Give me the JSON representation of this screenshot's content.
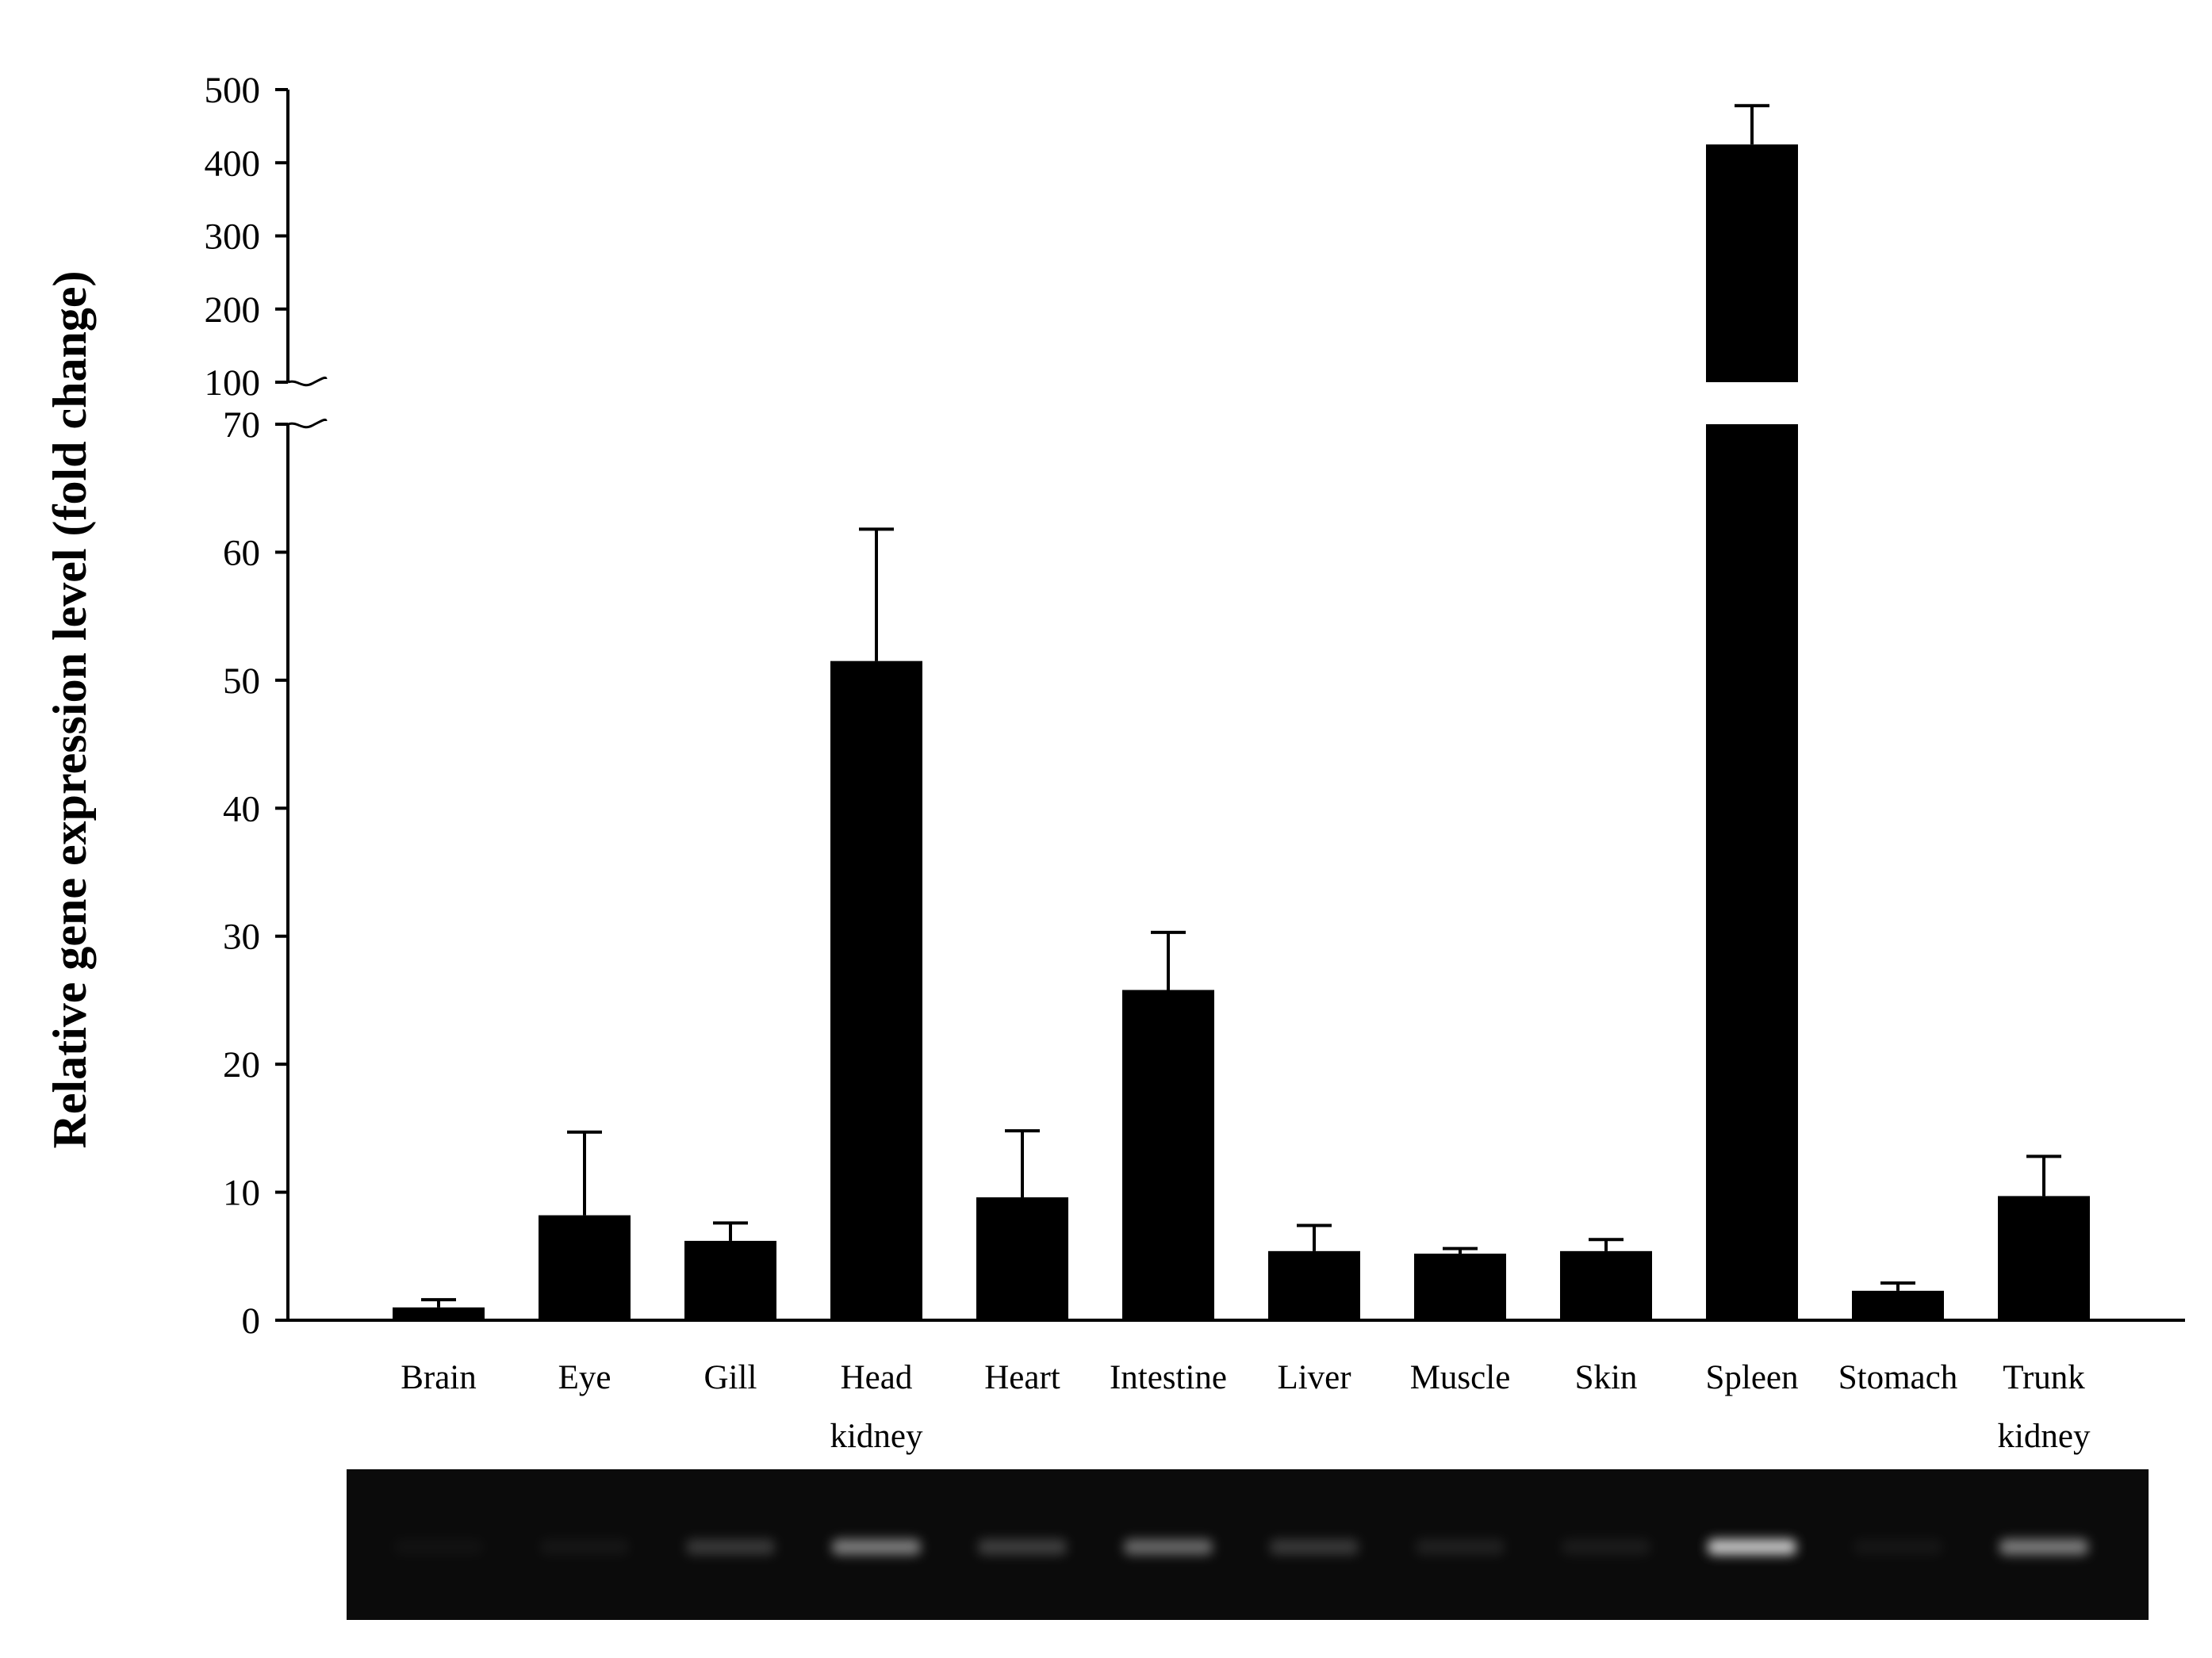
{
  "chart_data": {
    "type": "bar",
    "title": "",
    "ylabel": "Relative gene expression level (fold change)",
    "xlabel": "",
    "categories": [
      [
        "Brain"
      ],
      [
        "Eye"
      ],
      [
        "Gill"
      ],
      [
        "Head",
        "kidney"
      ],
      [
        "Heart"
      ],
      [
        "Intestine"
      ],
      [
        "Liver"
      ],
      [
        "Muscle"
      ],
      [
        "Skin"
      ],
      [
        "Spleen"
      ],
      [
        "Stomach"
      ],
      [
        "Trunk",
        "kidney"
      ]
    ],
    "values": [
      1.0,
      8.2,
      6.2,
      51.5,
      9.6,
      25.8,
      5.4,
      5.2,
      5.4,
      425,
      2.3,
      9.7
    ],
    "error_upper": [
      1.6,
      14.7,
      7.6,
      61.8,
      14.8,
      30.3,
      7.4,
      5.6,
      6.3,
      478,
      2.9,
      12.8
    ],
    "y_axis": {
      "broken": true,
      "lower_range": [
        0,
        70
      ],
      "upper_range": [
        100,
        500
      ],
      "lower_ticks": [
        0,
        10,
        20,
        30,
        40,
        50,
        60,
        70
      ],
      "upper_ticks": [
        100,
        200,
        300,
        400,
        500
      ]
    },
    "gel_image": {
      "present": true,
      "band_intensity": [
        0.03,
        0.05,
        0.22,
        0.55,
        0.25,
        0.45,
        0.22,
        0.1,
        0.08,
        0.9,
        0.05,
        0.55
      ]
    },
    "colors": {
      "bar": "#000000",
      "axis": "#000000",
      "gel_background": "#0b0b0b",
      "gel_band": "#d8d8d8"
    },
    "grid": false,
    "legend": "none"
  }
}
